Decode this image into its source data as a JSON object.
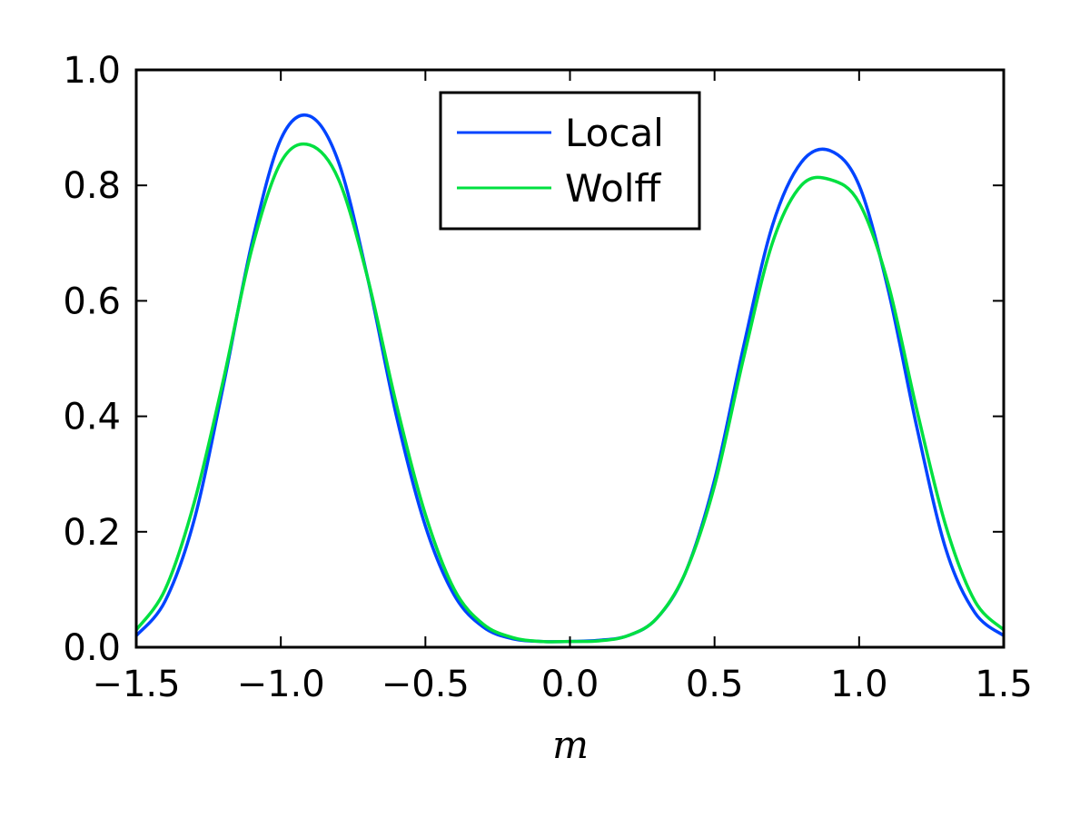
{
  "chart_data": {
    "type": "line",
    "title": "",
    "xlabel": "m",
    "ylabel": "",
    "xlim": [
      -1.5,
      1.5
    ],
    "ylim": [
      0.0,
      1.0
    ],
    "x_ticks": [
      "−1.5",
      "−1.0",
      "−0.5",
      "0.0",
      "0.5",
      "1.0",
      "1.5"
    ],
    "y_ticks": [
      "0.0",
      "0.2",
      "0.4",
      "0.6",
      "0.8",
      "1.0"
    ],
    "grid": false,
    "legend": "upper-center",
    "x": [
      -1.5,
      -1.4,
      -1.3,
      -1.2,
      -1.1,
      -1.0,
      -0.9,
      -0.8,
      -0.7,
      -0.6,
      -0.5,
      -0.4,
      -0.3,
      -0.2,
      -0.1,
      0.0,
      0.1,
      0.2,
      0.3,
      0.4,
      0.5,
      0.6,
      0.7,
      0.8,
      0.9,
      1.0,
      1.1,
      1.2,
      1.3,
      1.4,
      1.5
    ],
    "series": [
      {
        "name": "Local",
        "color": "#0044ff",
        "values": [
          0.02,
          0.08,
          0.22,
          0.45,
          0.7,
          0.88,
          0.92,
          0.84,
          0.64,
          0.4,
          0.21,
          0.09,
          0.035,
          0.015,
          0.01,
          0.01,
          0.012,
          0.02,
          0.05,
          0.13,
          0.29,
          0.52,
          0.73,
          0.84,
          0.86,
          0.8,
          0.62,
          0.38,
          0.17,
          0.06,
          0.02
        ]
      },
      {
        "name": "Wolff",
        "color": "#00e040",
        "values": [
          0.03,
          0.1,
          0.25,
          0.46,
          0.69,
          0.84,
          0.87,
          0.81,
          0.64,
          0.42,
          0.23,
          0.1,
          0.04,
          0.017,
          0.01,
          0.01,
          0.011,
          0.02,
          0.05,
          0.13,
          0.28,
          0.5,
          0.7,
          0.8,
          0.81,
          0.77,
          0.63,
          0.41,
          0.21,
          0.08,
          0.03
        ]
      }
    ]
  }
}
